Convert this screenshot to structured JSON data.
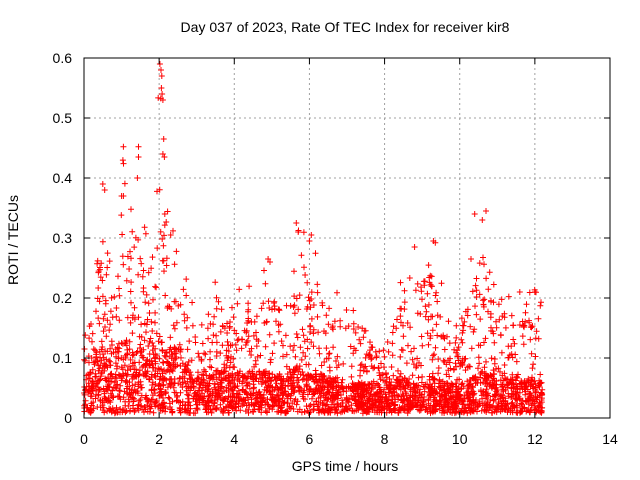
{
  "chart_data": {
    "type": "scatter",
    "title": "Day 037 of 2023, Rate Of TEC Index for receiver kir8",
    "xlabel": "GPS time / hours",
    "ylabel": "ROTI / TECUs",
    "xlim": [
      0,
      14
    ],
    "ylim": [
      0,
      0.6
    ],
    "xticks": [
      "0",
      "2",
      "4",
      "6",
      "8",
      "10",
      "12",
      "14"
    ],
    "yticks": [
      "0",
      "0.1",
      "0.2",
      "0.3",
      "0.4",
      "0.5",
      "0.6"
    ],
    "grid": true,
    "marker": "+",
    "color": "#ff0000",
    "x_range_of_data": [
      0,
      12.2
    ],
    "profile": [
      {
        "x": 0.0,
        "base": 0.06,
        "peak": 0.15
      },
      {
        "x": 0.3,
        "base": 0.09,
        "peak": 0.22
      },
      {
        "x": 0.5,
        "base": 0.12,
        "peak": 0.39
      },
      {
        "x": 0.8,
        "base": 0.11,
        "peak": 0.28
      },
      {
        "x": 1.0,
        "base": 0.12,
        "peak": 0.45
      },
      {
        "x": 1.3,
        "base": 0.11,
        "peak": 0.32
      },
      {
        "x": 1.5,
        "base": 0.13,
        "peak": 0.45
      },
      {
        "x": 1.8,
        "base": 0.12,
        "peak": 0.3
      },
      {
        "x": 2.0,
        "base": 0.14,
        "peak": 0.59
      },
      {
        "x": 2.2,
        "base": 0.1,
        "peak": 0.34
      },
      {
        "x": 2.5,
        "base": 0.12,
        "peak": 0.3
      },
      {
        "x": 2.8,
        "base": 0.07,
        "peak": 0.2
      },
      {
        "x": 3.0,
        "base": 0.06,
        "peak": 0.18
      },
      {
        "x": 3.5,
        "base": 0.07,
        "peak": 0.23
      },
      {
        "x": 4.0,
        "base": 0.07,
        "peak": 0.21
      },
      {
        "x": 4.5,
        "base": 0.07,
        "peak": 0.22
      },
      {
        "x": 4.9,
        "base": 0.07,
        "peak": 0.26
      },
      {
        "x": 5.3,
        "base": 0.06,
        "peak": 0.2
      },
      {
        "x": 5.7,
        "base": 0.08,
        "peak": 0.32
      },
      {
        "x": 6.0,
        "base": 0.07,
        "peak": 0.3
      },
      {
        "x": 6.5,
        "base": 0.06,
        "peak": 0.2
      },
      {
        "x": 7.0,
        "base": 0.05,
        "peak": 0.21
      },
      {
        "x": 7.5,
        "base": 0.05,
        "peak": 0.16
      },
      {
        "x": 8.0,
        "base": 0.05,
        "peak": 0.13
      },
      {
        "x": 8.5,
        "base": 0.06,
        "peak": 0.24
      },
      {
        "x": 8.9,
        "base": 0.05,
        "peak": 0.28
      },
      {
        "x": 9.3,
        "base": 0.06,
        "peak": 0.29
      },
      {
        "x": 9.7,
        "base": 0.05,
        "peak": 0.16
      },
      {
        "x": 10.0,
        "base": 0.05,
        "peak": 0.17
      },
      {
        "x": 10.4,
        "base": 0.06,
        "peak": 0.27
      },
      {
        "x": 10.6,
        "base": 0.07,
        "peak": 0.34
      },
      {
        "x": 11.0,
        "base": 0.06,
        "peak": 0.2
      },
      {
        "x": 11.5,
        "base": 0.06,
        "peak": 0.21
      },
      {
        "x": 12.0,
        "base": 0.06,
        "peak": 0.21
      },
      {
        "x": 12.2,
        "base": 0.05,
        "peak": 0.19
      }
    ],
    "spikes": [
      {
        "x": 2.02,
        "y": 0.59
      },
      {
        "x": 2.05,
        "y": 0.58
      },
      {
        "x": 2.07,
        "y": 0.57
      },
      {
        "x": 2.06,
        "y": 0.55
      },
      {
        "x": 2.08,
        "y": 0.54
      },
      {
        "x": 2.1,
        "y": 0.53
      },
      {
        "x": 2.12,
        "y": 0.465
      },
      {
        "x": 2.1,
        "y": 0.44
      },
      {
        "x": 2.14,
        "y": 0.435
      },
      {
        "x": 1.05,
        "y": 0.452
      },
      {
        "x": 1.45,
        "y": 0.452
      },
      {
        "x": 1.45,
        "y": 0.435
      },
      {
        "x": 1.42,
        "y": 0.4
      },
      {
        "x": 0.5,
        "y": 0.39
      },
      {
        "x": 0.55,
        "y": 0.38
      },
      {
        "x": 1.0,
        "y": 0.37
      },
      {
        "x": 1.05,
        "y": 0.37
      },
      {
        "x": 2.15,
        "y": 0.34
      },
      {
        "x": 10.4,
        "y": 0.34
      },
      {
        "x": 10.7,
        "y": 0.345
      },
      {
        "x": 10.6,
        "y": 0.33
      },
      {
        "x": 5.65,
        "y": 0.325
      },
      {
        "x": 5.7,
        "y": 0.31
      },
      {
        "x": 6.05,
        "y": 0.305
      },
      {
        "x": 6.0,
        "y": 0.295
      },
      {
        "x": 9.3,
        "y": 0.295
      },
      {
        "x": 9.35,
        "y": 0.292
      },
      {
        "x": 8.8,
        "y": 0.285
      },
      {
        "x": 10.3,
        "y": 0.265
      },
      {
        "x": 4.9,
        "y": 0.265
      },
      {
        "x": 4.95,
        "y": 0.26
      },
      {
        "x": 11.6,
        "y": 0.21
      },
      {
        "x": 12.0,
        "y": 0.21
      }
    ]
  }
}
